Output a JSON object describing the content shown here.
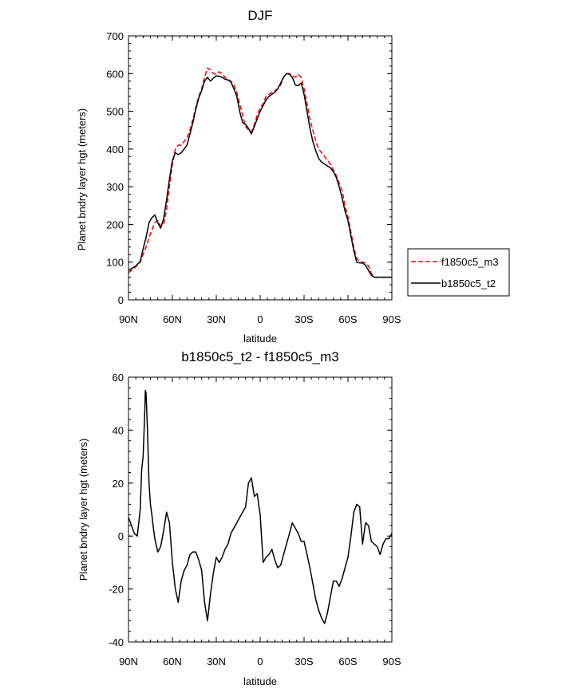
{
  "chart_data": [
    {
      "type": "line",
      "title": "DJF",
      "xlabel": "latitude",
      "ylabel": "Planet bndry layer hgt (meters)",
      "xlim": [
        90,
        -90
      ],
      "ylim": [
        0,
        700
      ],
      "x_tick_values": [
        90,
        60,
        30,
        0,
        -30,
        -60,
        -90
      ],
      "x_tick_labels": [
        "90N",
        "60N",
        "30N",
        "0",
        "30S",
        "60S",
        "90S"
      ],
      "y_tick_values": [
        0,
        100,
        200,
        300,
        400,
        500,
        600,
        700
      ],
      "y_tick_labels": [
        "0",
        "100",
        "200",
        "300",
        "400",
        "500",
        "600",
        "700"
      ],
      "legend_position": "right",
      "series": [
        {
          "name": "f1850c5_m3",
          "color": "#ff0000",
          "dash": "dashed",
          "x": [
            90,
            85,
            82,
            80,
            78,
            76,
            74,
            72,
            70,
            68,
            66,
            64,
            62,
            60,
            58,
            56,
            54,
            52,
            50,
            48,
            46,
            44,
            42,
            40,
            38,
            36,
            34,
            32,
            30,
            28,
            26,
            24,
            22,
            20,
            18,
            16,
            14,
            12,
            10,
            8,
            6,
            4,
            2,
            0,
            -2,
            -4,
            -6,
            -8,
            -10,
            -12,
            -14,
            -16,
            -18,
            -20,
            -22,
            -24,
            -26,
            -28,
            -30,
            -32,
            -34,
            -36,
            -38,
            -40,
            -42,
            -44,
            -46,
            -48,
            -50,
            -52,
            -54,
            -56,
            -58,
            -60,
            -62,
            -64,
            -66,
            -68,
            -70,
            -72,
            -74,
            -76,
            -78,
            -80,
            -82,
            -84,
            -86,
            -88,
            -90
          ],
          "y": [
            72,
            88,
            100,
            120,
            140,
            165,
            185,
            205,
            210,
            195,
            200,
            240,
            300,
            360,
            400,
            410,
            410,
            420,
            430,
            450,
            480,
            510,
            540,
            560,
            590,
            615,
            610,
            600,
            598,
            605,
            600,
            590,
            585,
            580,
            570,
            550,
            520,
            490,
            460,
            450,
            445,
            465,
            490,
            510,
            520,
            540,
            545,
            550,
            555,
            560,
            570,
            590,
            600,
            600,
            595,
            590,
            598,
            590,
            560,
            520,
            480,
            450,
            420,
            400,
            390,
            380,
            370,
            360,
            345,
            330,
            310,
            290,
            250,
            220,
            180,
            140,
            110,
            102,
            100,
            98,
            90,
            70,
            60,
            60,
            60,
            60,
            60,
            60,
            60
          ]
        },
        {
          "name": "b1850c5_t2",
          "color": "#000000",
          "dash": "solid",
          "x": [
            90,
            85,
            82,
            80,
            78,
            76,
            74,
            72,
            70,
            68,
            66,
            64,
            62,
            60,
            58,
            56,
            54,
            52,
            50,
            48,
            46,
            44,
            42,
            40,
            38,
            36,
            34,
            32,
            30,
            28,
            26,
            24,
            22,
            20,
            18,
            16,
            14,
            12,
            10,
            8,
            6,
            4,
            2,
            0,
            -2,
            -4,
            -6,
            -8,
            -10,
            -12,
            -14,
            -16,
            -18,
            -20,
            -22,
            -24,
            -26,
            -28,
            -30,
            -32,
            -34,
            -36,
            -38,
            -40,
            -42,
            -44,
            -46,
            -48,
            -50,
            -52,
            -54,
            -56,
            -58,
            -60,
            -62,
            -64,
            -66,
            -68,
            -70,
            -72,
            -74,
            -76,
            -78,
            -80,
            -82,
            -84,
            -86,
            -88,
            -90
          ],
          "y": [
            78,
            90,
            102,
            135,
            165,
            205,
            218,
            225,
            205,
            190,
            215,
            265,
            320,
            370,
            390,
            385,
            390,
            400,
            410,
            440,
            470,
            505,
            535,
            555,
            580,
            590,
            580,
            588,
            594,
            593,
            590,
            585,
            583,
            578,
            560,
            540,
            500,
            470,
            465,
            455,
            440,
            460,
            480,
            500,
            515,
            530,
            540,
            545,
            550,
            560,
            575,
            590,
            600,
            598,
            590,
            570,
            568,
            575,
            545,
            500,
            455,
            420,
            395,
            375,
            365,
            360,
            355,
            350,
            340,
            325,
            300,
            270,
            235,
            210,
            170,
            130,
            100,
            98,
            98,
            92,
            78,
            65,
            60,
            60,
            60,
            60,
            60,
            60,
            60
          ]
        }
      ]
    },
    {
      "type": "line",
      "title": "b1850c5_t2 - f1850c5_m3",
      "xlabel": "latitude",
      "ylabel": "Planet bndry layer hgt (meters)",
      "xlim": [
        90,
        -90
      ],
      "ylim": [
        -40,
        60
      ],
      "x_tick_values": [
        90,
        60,
        30,
        0,
        -30,
        -60,
        -90
      ],
      "x_tick_labels": [
        "90N",
        "60N",
        "30N",
        "0",
        "30S",
        "60S",
        "90S"
      ],
      "y_tick_values": [
        -40,
        -20,
        0,
        20,
        40,
        60
      ],
      "y_tick_labels": [
        "-40",
        "-20",
        "0",
        "20",
        "40",
        "60"
      ],
      "series": [
        {
          "color": "#000000",
          "dash": "solid",
          "x": [
            90,
            88,
            86,
            84,
            82,
            81,
            80,
            79,
            78.5,
            78,
            77,
            76,
            75,
            74,
            73,
            72,
            70,
            68,
            66,
            64,
            62,
            60,
            58,
            56,
            54,
            52,
            50,
            48,
            46,
            44,
            42,
            40,
            38,
            36,
            34,
            32,
            30,
            28,
            26,
            24,
            22,
            20,
            18,
            16,
            14,
            12,
            10,
            8,
            6,
            4,
            2,
            0,
            -2,
            -4,
            -6,
            -8,
            -10,
            -12,
            -14,
            -16,
            -18,
            -20,
            -22,
            -24,
            -26,
            -28,
            -30,
            -32,
            -34,
            -36,
            -38,
            -40,
            -42,
            -44,
            -46,
            -48,
            -50,
            -52,
            -54,
            -56,
            -58,
            -60,
            -62,
            -64,
            -66,
            -68,
            -70,
            -72,
            -74,
            -76,
            -78,
            -80,
            -82,
            -84,
            -86,
            -88,
            -90
          ],
          "y": [
            7,
            4,
            1,
            0,
            10,
            25,
            30,
            45,
            55,
            54,
            40,
            20,
            12,
            8,
            3,
            -1,
            -6,
            -4,
            2,
            9,
            5,
            -10,
            -20,
            -25,
            -17,
            -13,
            -11,
            -7,
            -6,
            -6,
            -9,
            -13,
            -25,
            -32,
            -22,
            -14,
            -8,
            -10,
            -8,
            -5,
            -3,
            1,
            3,
            5,
            7,
            9,
            11,
            20,
            22,
            15,
            16,
            8,
            -10,
            -8,
            -7,
            -5,
            -9,
            -12,
            -11,
            -7,
            -3,
            1,
            5,
            3,
            1,
            -2,
            -2,
            -7,
            -12,
            -18,
            -24,
            -28,
            -31,
            -33,
            -29,
            -23,
            -17,
            -17,
            -19,
            -16,
            -12,
            -8,
            0,
            9,
            12,
            11,
            -3,
            5,
            4,
            -2,
            -3,
            -4,
            -7,
            -3,
            -1,
            -1,
            1
          ]
        }
      ]
    }
  ],
  "legend": {
    "items": [
      {
        "label": "f1850c5_m3",
        "color": "#ff0000",
        "dash": "dashed"
      },
      {
        "label": "b1850c5_t2",
        "color": "#000000",
        "dash": "solid"
      }
    ]
  }
}
